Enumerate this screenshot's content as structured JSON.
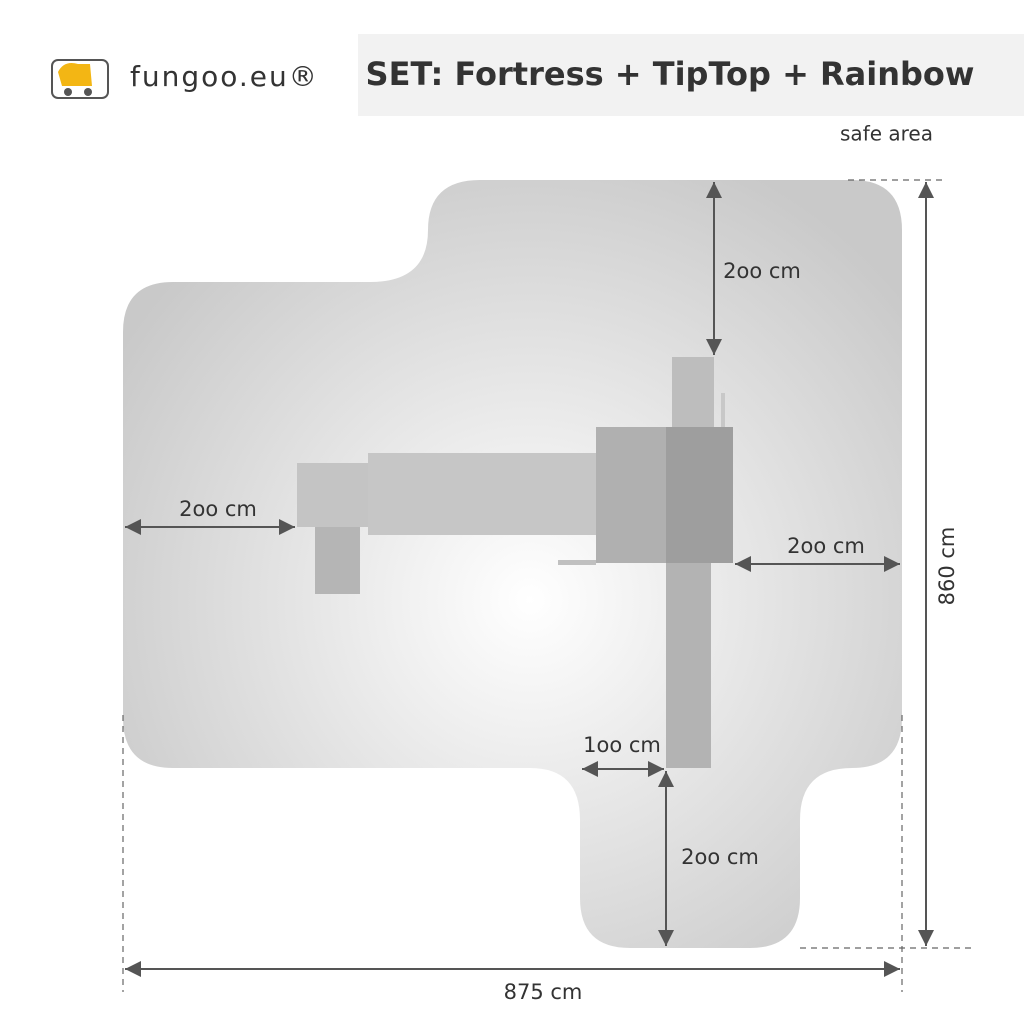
{
  "header": {
    "logo_text": "fungoo.eu®",
    "title": "SET: Fortress + TipTop + Rainbow"
  },
  "safe_area_label": "safe area",
  "dimensions": {
    "top_right": "2oo cm",
    "left": "2oo cm",
    "right": "2oo cm",
    "bottom_offset": "1oo cm",
    "bottom": "2oo cm",
    "total_height": "860 cm",
    "total_width": "875 cm"
  }
}
